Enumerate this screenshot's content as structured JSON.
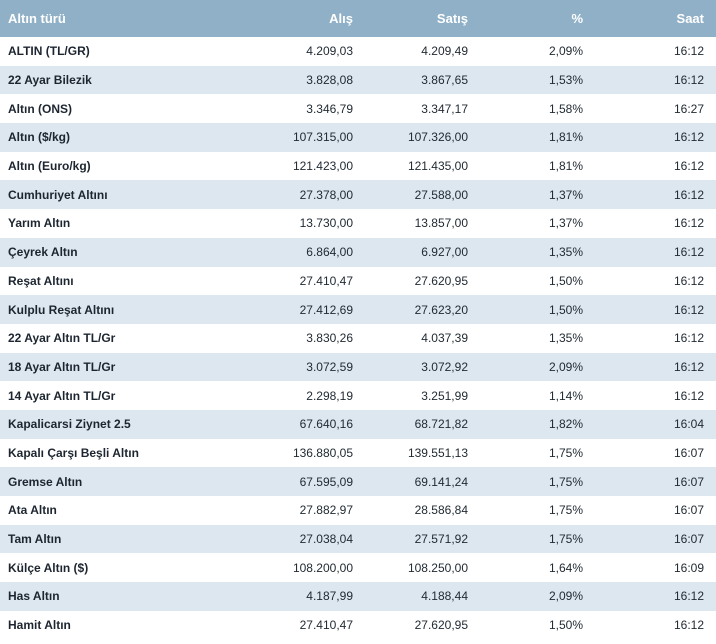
{
  "table": {
    "headers": {
      "name": "Altın türü",
      "buy": "Alış",
      "sell": "Satış",
      "pct": "%",
      "time": "Saat"
    },
    "rows": [
      {
        "name": "ALTIN (TL/GR)",
        "buy": "4.209,03",
        "sell": "4.209,49",
        "pct": "2,09%",
        "time": "16:12"
      },
      {
        "name": "22 Ayar Bilezik",
        "buy": "3.828,08",
        "sell": "3.867,65",
        "pct": "1,53%",
        "time": "16:12"
      },
      {
        "name": "Altın (ONS)",
        "buy": "3.346,79",
        "sell": "3.347,17",
        "pct": "1,58%",
        "time": "16:27"
      },
      {
        "name": "Altın ($/kg)",
        "buy": "107.315,00",
        "sell": "107.326,00",
        "pct": "1,81%",
        "time": "16:12"
      },
      {
        "name": "Altın (Euro/kg)",
        "buy": "121.423,00",
        "sell": "121.435,00",
        "pct": "1,81%",
        "time": "16:12"
      },
      {
        "name": "Cumhuriyet Altını",
        "buy": "27.378,00",
        "sell": "27.588,00",
        "pct": "1,37%",
        "time": "16:12"
      },
      {
        "name": "Yarım Altın",
        "buy": "13.730,00",
        "sell": "13.857,00",
        "pct": "1,37%",
        "time": "16:12"
      },
      {
        "name": "Çeyrek Altın",
        "buy": "6.864,00",
        "sell": "6.927,00",
        "pct": "1,35%",
        "time": "16:12"
      },
      {
        "name": "Reşat Altını",
        "buy": "27.410,47",
        "sell": "27.620,95",
        "pct": "1,50%",
        "time": "16:12"
      },
      {
        "name": "Kulplu Reşat Altını",
        "buy": "27.412,69",
        "sell": "27.623,20",
        "pct": "1,50%",
        "time": "16:12"
      },
      {
        "name": "22 Ayar Altın TL/Gr",
        "buy": "3.830,26",
        "sell": "4.037,39",
        "pct": "1,35%",
        "time": "16:12"
      },
      {
        "name": "18 Ayar Altın TL/Gr",
        "buy": "3.072,59",
        "sell": "3.072,92",
        "pct": "2,09%",
        "time": "16:12"
      },
      {
        "name": "14 Ayar Altın TL/Gr",
        "buy": "2.298,19",
        "sell": "3.251,99",
        "pct": "1,14%",
        "time": "16:12"
      },
      {
        "name": "Kapalicarsi Ziynet 2.5",
        "buy": "67.640,16",
        "sell": "68.721,82",
        "pct": "1,82%",
        "time": "16:04"
      },
      {
        "name": "Kapalı Çarşı Beşli Altın",
        "buy": "136.880,05",
        "sell": "139.551,13",
        "pct": "1,75%",
        "time": "16:07"
      },
      {
        "name": "Gremse Altın",
        "buy": "67.595,09",
        "sell": "69.141,24",
        "pct": "1,75%",
        "time": "16:07"
      },
      {
        "name": "Ata Altın",
        "buy": "27.882,97",
        "sell": "28.586,84",
        "pct": "1,75%",
        "time": "16:07"
      },
      {
        "name": "Tam Altın",
        "buy": "27.038,04",
        "sell": "27.571,92",
        "pct": "1,75%",
        "time": "16:07"
      },
      {
        "name": "Külçe Altın ($)",
        "buy": "108.200,00",
        "sell": "108.250,00",
        "pct": "1,64%",
        "time": "16:09"
      },
      {
        "name": "Has Altın",
        "buy": "4.187,99",
        "sell": "4.188,44",
        "pct": "2,09%",
        "time": "16:12"
      },
      {
        "name": "Hamit Altın",
        "buy": "27.410,47",
        "sell": "27.620,95",
        "pct": "1,50%",
        "time": "16:12"
      }
    ]
  },
  "colors": {
    "header_bg": "#8fb0c7",
    "row_alt_bg": "#dce7ef",
    "row_bg": "#ffffff"
  }
}
